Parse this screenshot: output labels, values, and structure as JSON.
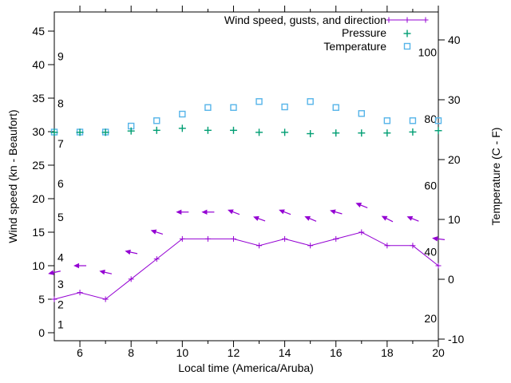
{
  "chart_data": {
    "type": "line",
    "description": "Weather meteogram: wind speed with gust arrows, pressure and temperature vs local time",
    "x_axis": {
      "label": "Local time (America/Aruba)",
      "range": [
        5,
        20
      ],
      "major_ticks": [
        6,
        8,
        10,
        12,
        14,
        16,
        18,
        20
      ],
      "minor_ticks": [
        7,
        9,
        11,
        13,
        15,
        17,
        19
      ]
    },
    "left_axis": {
      "label": "Wind speed (kn - Beaufort)",
      "ticks_kn": [
        0,
        5,
        10,
        15,
        20,
        25,
        30,
        35,
        40,
        45
      ],
      "beaufort_labels": [
        {
          "beaufort": "1",
          "kn": 1
        },
        {
          "beaufort": "2",
          "kn": 4
        },
        {
          "beaufort": "3",
          "kn": 7
        },
        {
          "beaufort": "4",
          "kn": 11
        },
        {
          "beaufort": "5",
          "kn": 17
        },
        {
          "beaufort": "6",
          "kn": 22
        },
        {
          "beaufort": "7",
          "kn": 28
        },
        {
          "beaufort": "8",
          "kn": 34
        },
        {
          "beaufort": "9",
          "kn": 41
        }
      ]
    },
    "right_axis": {
      "label": "Temperature (C - F)",
      "ticks_c": [
        -10,
        0,
        10,
        20,
        30,
        40
      ],
      "ticks_f_inside": [
        20,
        40,
        60,
        80,
        100
      ]
    },
    "legend": [
      {
        "label": "Wind speed, gusts, and direction",
        "color": "#9400d3",
        "marker": "line-with-plus"
      },
      {
        "label": "Pressure",
        "color": "#009e73",
        "marker": "plus"
      },
      {
        "label": "Temperature",
        "color": "#56b4e9",
        "marker": "open-square"
      }
    ],
    "hours": [
      5,
      6,
      7,
      8,
      9,
      10,
      11,
      12,
      13,
      14,
      15,
      16,
      17,
      18,
      19,
      20
    ],
    "wind_speed_kn": [
      5,
      6,
      5,
      8,
      11,
      14,
      14,
      14,
      13,
      14,
      13,
      14,
      15,
      13,
      13,
      10
    ],
    "gusts_kn": [
      9,
      10,
      9,
      12,
      15,
      18,
      18,
      18,
      17,
      18,
      17,
      18,
      19,
      17,
      17,
      14
    ],
    "gust_arrow_angles_screen_deg": [
      168,
      180,
      193,
      192,
      198,
      180,
      180,
      201,
      200,
      201,
      203,
      196,
      202,
      207,
      202,
      187
    ],
    "pressure_inhg": [
      29.9,
      29.9,
      29.9,
      30.1,
      30.2,
      30.5,
      30.2,
      30.2,
      29.9,
      29.9,
      29.7,
      29.8,
      29.8,
      29.8,
      29.95,
      30.15
    ],
    "pressure_plotted_on": "left_axis",
    "temperature_c": [
      24.6,
      24.6,
      24.6,
      25.6,
      26.5,
      27.6,
      28.7,
      28.7,
      29.7,
      28.8,
      29.7,
      28.7,
      27.7,
      26.5,
      26.5,
      26.5
    ],
    "colors": {
      "wind": "#9400d3",
      "pressure": "#009e73",
      "temperature": "#56b4e9",
      "axis": "#000000",
      "background": "#ffffff"
    },
    "grid": "off",
    "legend_position": "top-right-inside"
  }
}
